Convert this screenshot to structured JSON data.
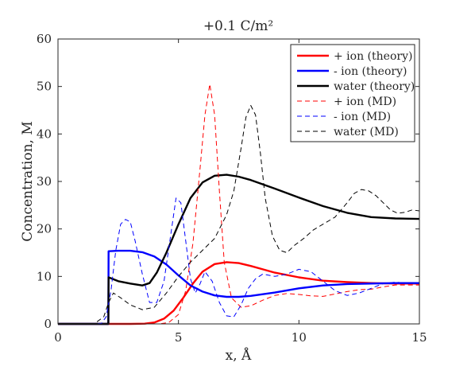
{
  "chart_data": {
    "type": "line",
    "title": "+0.1 C/m²",
    "xlabel": "x, Å",
    "ylabel": "Concentration, M",
    "xlim": [
      0,
      15
    ],
    "ylim": [
      0,
      60
    ],
    "xticks": [
      0,
      5,
      10,
      15
    ],
    "yticks": [
      0,
      10,
      20,
      30,
      40,
      50,
      60
    ],
    "xtick_labels": [
      "0",
      "5",
      "10",
      "15"
    ],
    "ytick_labels": [
      "0",
      "10",
      "20",
      "30",
      "40",
      "50",
      "60"
    ],
    "grid": false,
    "legend_position": "top-right",
    "series": [
      {
        "name": "+ ion (theory)",
        "color": "#ff0000",
        "style": "solid",
        "x": [
          0,
          2.0,
          3.0,
          3.6,
          4.0,
          4.4,
          4.8,
          5.2,
          5.6,
          6.0,
          6.5,
          7.0,
          7.5,
          8.0,
          8.5,
          9.0,
          10.0,
          11.0,
          12.0,
          13.0,
          14.0,
          15.0
        ],
        "y": [
          0,
          0,
          0,
          0.05,
          0.3,
          1.1,
          2.8,
          5.5,
          8.5,
          11.0,
          12.6,
          13.0,
          12.8,
          12.2,
          11.5,
          10.8,
          9.8,
          9.1,
          8.8,
          8.6,
          8.5,
          8.5
        ]
      },
      {
        "name": "- ion (theory)",
        "color": "#0000ff",
        "style": "solid",
        "x": [
          0,
          2.09,
          2.1,
          2.5,
          3.0,
          3.5,
          4.0,
          4.5,
          5.0,
          5.5,
          6.0,
          6.5,
          7.0,
          7.5,
          8.0,
          9.0,
          10.0,
          11.0,
          12.0,
          13.0,
          14.0,
          15.0
        ],
        "y": [
          0,
          0,
          15.3,
          15.4,
          15.4,
          15.1,
          14.2,
          12.5,
          10.2,
          8.1,
          6.8,
          6.0,
          5.7,
          5.7,
          5.9,
          6.6,
          7.5,
          8.1,
          8.4,
          8.5,
          8.6,
          8.6
        ]
      },
      {
        "name": "water (theory)",
        "color": "#000000",
        "style": "solid",
        "x": [
          0,
          2.09,
          2.1,
          2.5,
          3.0,
          3.5,
          3.8,
          4.1,
          4.5,
          5.0,
          5.5,
          6.0,
          6.5,
          7.0,
          7.5,
          8.0,
          9.0,
          10.0,
          11.0,
          12.0,
          13.0,
          14.0,
          15.0
        ],
        "y": [
          0,
          0,
          9.8,
          9.0,
          8.5,
          8.1,
          8.6,
          10.8,
          15.0,
          21.0,
          26.5,
          29.8,
          31.2,
          31.4,
          31.0,
          30.3,
          28.5,
          26.6,
          24.8,
          23.4,
          22.5,
          22.2,
          22.1
        ],
        "width": 2
      },
      {
        "name": "+ ion (MD)",
        "color": "#ff0000",
        "style": "dashed",
        "x": [
          0,
          1.5,
          2.0,
          2.3,
          2.6,
          3.0,
          3.4,
          3.8,
          4.2,
          4.6,
          5.0,
          5.3,
          5.6,
          5.9,
          6.1,
          6.3,
          6.5,
          6.7,
          6.9,
          7.2,
          7.6,
          8.0,
          8.5,
          9.0,
          9.5,
          10.0,
          10.5,
          11.0,
          11.5,
          12.0,
          12.5,
          13.0,
          13.5,
          14.0,
          14.5,
          15.0
        ],
        "y": [
          0,
          0,
          0,
          0,
          0,
          0,
          0,
          0,
          0,
          0.3,
          2.0,
          7.0,
          17.0,
          33.0,
          44.0,
          50.5,
          44.0,
          28.0,
          13.0,
          5.5,
          3.5,
          3.8,
          5.0,
          6.0,
          6.4,
          6.2,
          5.9,
          5.8,
          6.3,
          6.8,
          7.2,
          7.3,
          7.8,
          8.2,
          8.2,
          8.2
        ]
      },
      {
        "name": "- ion (MD)",
        "color": "#0000ff",
        "style": "dashed",
        "x": [
          0,
          1.5,
          1.8,
          2.0,
          2.2,
          2.4,
          2.6,
          2.8,
          3.0,
          3.2,
          3.5,
          3.8,
          4.1,
          4.4,
          4.7,
          4.9,
          5.1,
          5.3,
          5.5,
          5.7,
          5.9,
          6.1,
          6.4,
          6.7,
          7.0,
          7.3,
          7.6,
          7.9,
          8.2,
          8.5,
          9.0,
          9.5,
          10.0,
          10.5,
          11.0,
          11.5,
          12.0,
          12.5,
          13.0,
          13.5,
          14.0,
          14.5,
          15.0
        ],
        "y": [
          0,
          0,
          0.1,
          1.5,
          7.0,
          15.5,
          21.0,
          22.0,
          21.5,
          17.5,
          10.5,
          4.5,
          4.5,
          9.0,
          19.5,
          26.5,
          25.5,
          17.5,
          9.5,
          6.5,
          8.5,
          11.0,
          9.0,
          4.5,
          1.7,
          1.5,
          4.0,
          7.5,
          9.5,
          10.5,
          10.0,
          10.5,
          11.5,
          11.0,
          9.0,
          7.0,
          6.0,
          6.5,
          7.5,
          8.5,
          8.8,
          8.6,
          8.5
        ]
      },
      {
        "name": "water (MD)",
        "color": "#000000",
        "style": "dashed",
        "x": [
          0,
          1.5,
          1.9,
          2.1,
          2.3,
          2.6,
          3.0,
          3.5,
          4.0,
          4.5,
          5.0,
          5.5,
          6.0,
          6.5,
          7.0,
          7.3,
          7.6,
          7.8,
          8.0,
          8.2,
          8.4,
          8.6,
          8.9,
          9.2,
          9.5,
          9.8,
          10.2,
          10.6,
          11.0,
          11.5,
          12.0,
          12.3,
          12.6,
          12.9,
          13.2,
          13.5,
          13.8,
          14.1,
          14.4,
          14.7,
          15.0
        ],
        "y": [
          0,
          0,
          1.5,
          4.5,
          6.5,
          5.5,
          4.0,
          3.0,
          3.5,
          6.5,
          10.0,
          13.0,
          15.5,
          18.0,
          23.0,
          28.0,
          37.0,
          43.5,
          46.0,
          44.0,
          36.0,
          26.5,
          18.5,
          15.5,
          15.0,
          16.5,
          18.0,
          19.8,
          21.0,
          22.5,
          25.5,
          27.5,
          28.3,
          28.0,
          27.0,
          25.5,
          24.0,
          23.3,
          23.5,
          24.0,
          23.8
        ]
      }
    ]
  }
}
